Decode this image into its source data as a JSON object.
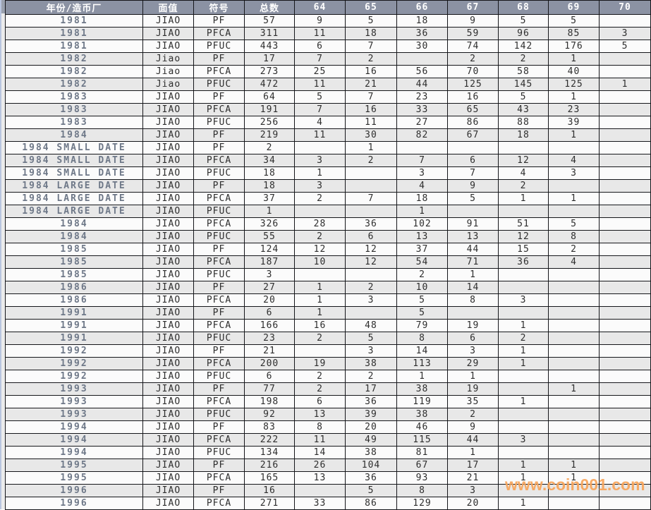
{
  "table": {
    "columns": [
      "年份/造币厂",
      "面值",
      "符号",
      "总数",
      "64",
      "65",
      "66",
      "67",
      "68",
      "69",
      "70"
    ],
    "col_keys": [
      "year",
      "denomination",
      "symbol",
      "total",
      "64",
      "65",
      "66",
      "67",
      "68",
      "69",
      "70"
    ],
    "rows": [
      [
        "1981",
        "JIAO",
        "PF",
        "57",
        "9",
        "5",
        "18",
        "9",
        "5",
        "5",
        ""
      ],
      [
        "1981",
        "JIAO",
        "PFCA",
        "311",
        "11",
        "18",
        "36",
        "59",
        "96",
        "85",
        "3"
      ],
      [
        "1981",
        "JIAO",
        "PFUC",
        "443",
        "6",
        "7",
        "30",
        "74",
        "142",
        "176",
        "5"
      ],
      [
        "1982",
        "Jiao",
        "PF",
        "17",
        "7",
        "2",
        "",
        "2",
        "2",
        "1",
        ""
      ],
      [
        "1982",
        "Jiao",
        "PFCA",
        "273",
        "25",
        "16",
        "56",
        "70",
        "58",
        "40",
        ""
      ],
      [
        "1982",
        "Jiao",
        "PFUC",
        "472",
        "11",
        "21",
        "44",
        "125",
        "145",
        "125",
        "1"
      ],
      [
        "1983",
        "JIAO",
        "PF",
        "64",
        "5",
        "7",
        "23",
        "16",
        "5",
        "1",
        ""
      ],
      [
        "1983",
        "JIAO",
        "PFCA",
        "191",
        "7",
        "16",
        "33",
        "65",
        "43",
        "23",
        ""
      ],
      [
        "1983",
        "JIAO",
        "PFUC",
        "256",
        "4",
        "11",
        "27",
        "86",
        "88",
        "39",
        ""
      ],
      [
        "1984",
        "JIAO",
        "PF",
        "219",
        "11",
        "30",
        "82",
        "67",
        "18",
        "1",
        ""
      ],
      [
        "1984 SMALL DATE",
        "JIAO",
        "PF",
        "2",
        "",
        "1",
        "",
        "",
        "",
        "",
        ""
      ],
      [
        "1984 SMALL DATE",
        "JIAO",
        "PFCA",
        "34",
        "3",
        "2",
        "7",
        "6",
        "12",
        "4",
        ""
      ],
      [
        "1984 SMALL DATE",
        "JIAO",
        "PFUC",
        "18",
        "1",
        "",
        "3",
        "7",
        "4",
        "3",
        ""
      ],
      [
        "1984 LARGE DATE",
        "JIAO",
        "PF",
        "18",
        "3",
        "",
        "4",
        "9",
        "2",
        "",
        ""
      ],
      [
        "1984 LARGE DATE",
        "JIAO",
        "PFCA",
        "37",
        "2",
        "7",
        "18",
        "5",
        "1",
        "1",
        ""
      ],
      [
        "1984 LARGE DATE",
        "JIAO",
        "PFUC",
        "1",
        "",
        "",
        "1",
        "",
        "",
        "",
        ""
      ],
      [
        "1984",
        "JIAO",
        "PFCA",
        "326",
        "28",
        "36",
        "102",
        "91",
        "51",
        "5",
        ""
      ],
      [
        "1984",
        "JIAO",
        "PFUC",
        "55",
        "2",
        "6",
        "13",
        "13",
        "12",
        "8",
        ""
      ],
      [
        "1985",
        "JIAO",
        "PF",
        "124",
        "12",
        "12",
        "37",
        "44",
        "15",
        "2",
        ""
      ],
      [
        "1985",
        "JIAO",
        "PFCA",
        "187",
        "10",
        "12",
        "54",
        "71",
        "36",
        "4",
        ""
      ],
      [
        "1985",
        "JIAO",
        "PFUC",
        "3",
        "",
        "",
        "2",
        "1",
        "",
        "",
        ""
      ],
      [
        "1986",
        "JIAO",
        "PF",
        "27",
        "1",
        "2",
        "10",
        "14",
        "",
        "",
        ""
      ],
      [
        "1986",
        "JIAO",
        "PFCA",
        "20",
        "1",
        "3",
        "5",
        "8",
        "3",
        "",
        ""
      ],
      [
        "1991",
        "JIAO",
        "PF",
        "6",
        "1",
        "",
        "5",
        "",
        "",
        "",
        ""
      ],
      [
        "1991",
        "JIAO",
        "PFCA",
        "166",
        "16",
        "48",
        "79",
        "19",
        "1",
        "",
        ""
      ],
      [
        "1991",
        "JIAO",
        "PFUC",
        "23",
        "2",
        "5",
        "8",
        "6",
        "2",
        "",
        ""
      ],
      [
        "1992",
        "JIAO",
        "PF",
        "21",
        "",
        "3",
        "14",
        "3",
        "1",
        "",
        ""
      ],
      [
        "1992",
        "JIAO",
        "PFCA",
        "200",
        "19",
        "38",
        "113",
        "29",
        "1",
        "",
        ""
      ],
      [
        "1992",
        "JIAO",
        "PFUC",
        "6",
        "2",
        "2",
        "1",
        "1",
        "",
        "",
        ""
      ],
      [
        "1993",
        "JIAO",
        "PF",
        "77",
        "2",
        "17",
        "38",
        "19",
        "",
        "1",
        ""
      ],
      [
        "1993",
        "JIAO",
        "PFCA",
        "198",
        "6",
        "36",
        "119",
        "35",
        "1",
        "",
        ""
      ],
      [
        "1993",
        "JIAO",
        "PFUC",
        "92",
        "13",
        "39",
        "38",
        "2",
        "",
        "",
        ""
      ],
      [
        "1994",
        "JIAO",
        "PF",
        "83",
        "8",
        "20",
        "46",
        "9",
        "",
        "",
        ""
      ],
      [
        "1994",
        "JIAO",
        "PFCA",
        "222",
        "11",
        "49",
        "115",
        "44",
        "3",
        "",
        ""
      ],
      [
        "1994",
        "JIAO",
        "PFUC",
        "134",
        "14",
        "38",
        "81",
        "1",
        "",
        "",
        ""
      ],
      [
        "1995",
        "JIAO",
        "PF",
        "216",
        "26",
        "104",
        "67",
        "17",
        "1",
        "1",
        ""
      ],
      [
        "1995",
        "JIAO",
        "PFCA",
        "165",
        "13",
        "36",
        "93",
        "21",
        "1",
        "1",
        ""
      ],
      [
        "1996",
        "JIAO",
        "PF",
        "16",
        "",
        "5",
        "8",
        "3",
        "",
        "",
        ""
      ],
      [
        "1996",
        "JIAO",
        "PFCA",
        "271",
        "33",
        "86",
        "129",
        "20",
        "1",
        "",
        ""
      ]
    ]
  },
  "watermark": {
    "text": "www.coin001.com"
  },
  "colors": {
    "header_bg": "#8B92A3",
    "header_text": "#FFFFFF",
    "row_light": "#FBFBFB",
    "row_dark": "#E8E8E8",
    "year_text": "#6E7888",
    "grid_line": "#15161A",
    "watermark": "#F8A55B"
  }
}
